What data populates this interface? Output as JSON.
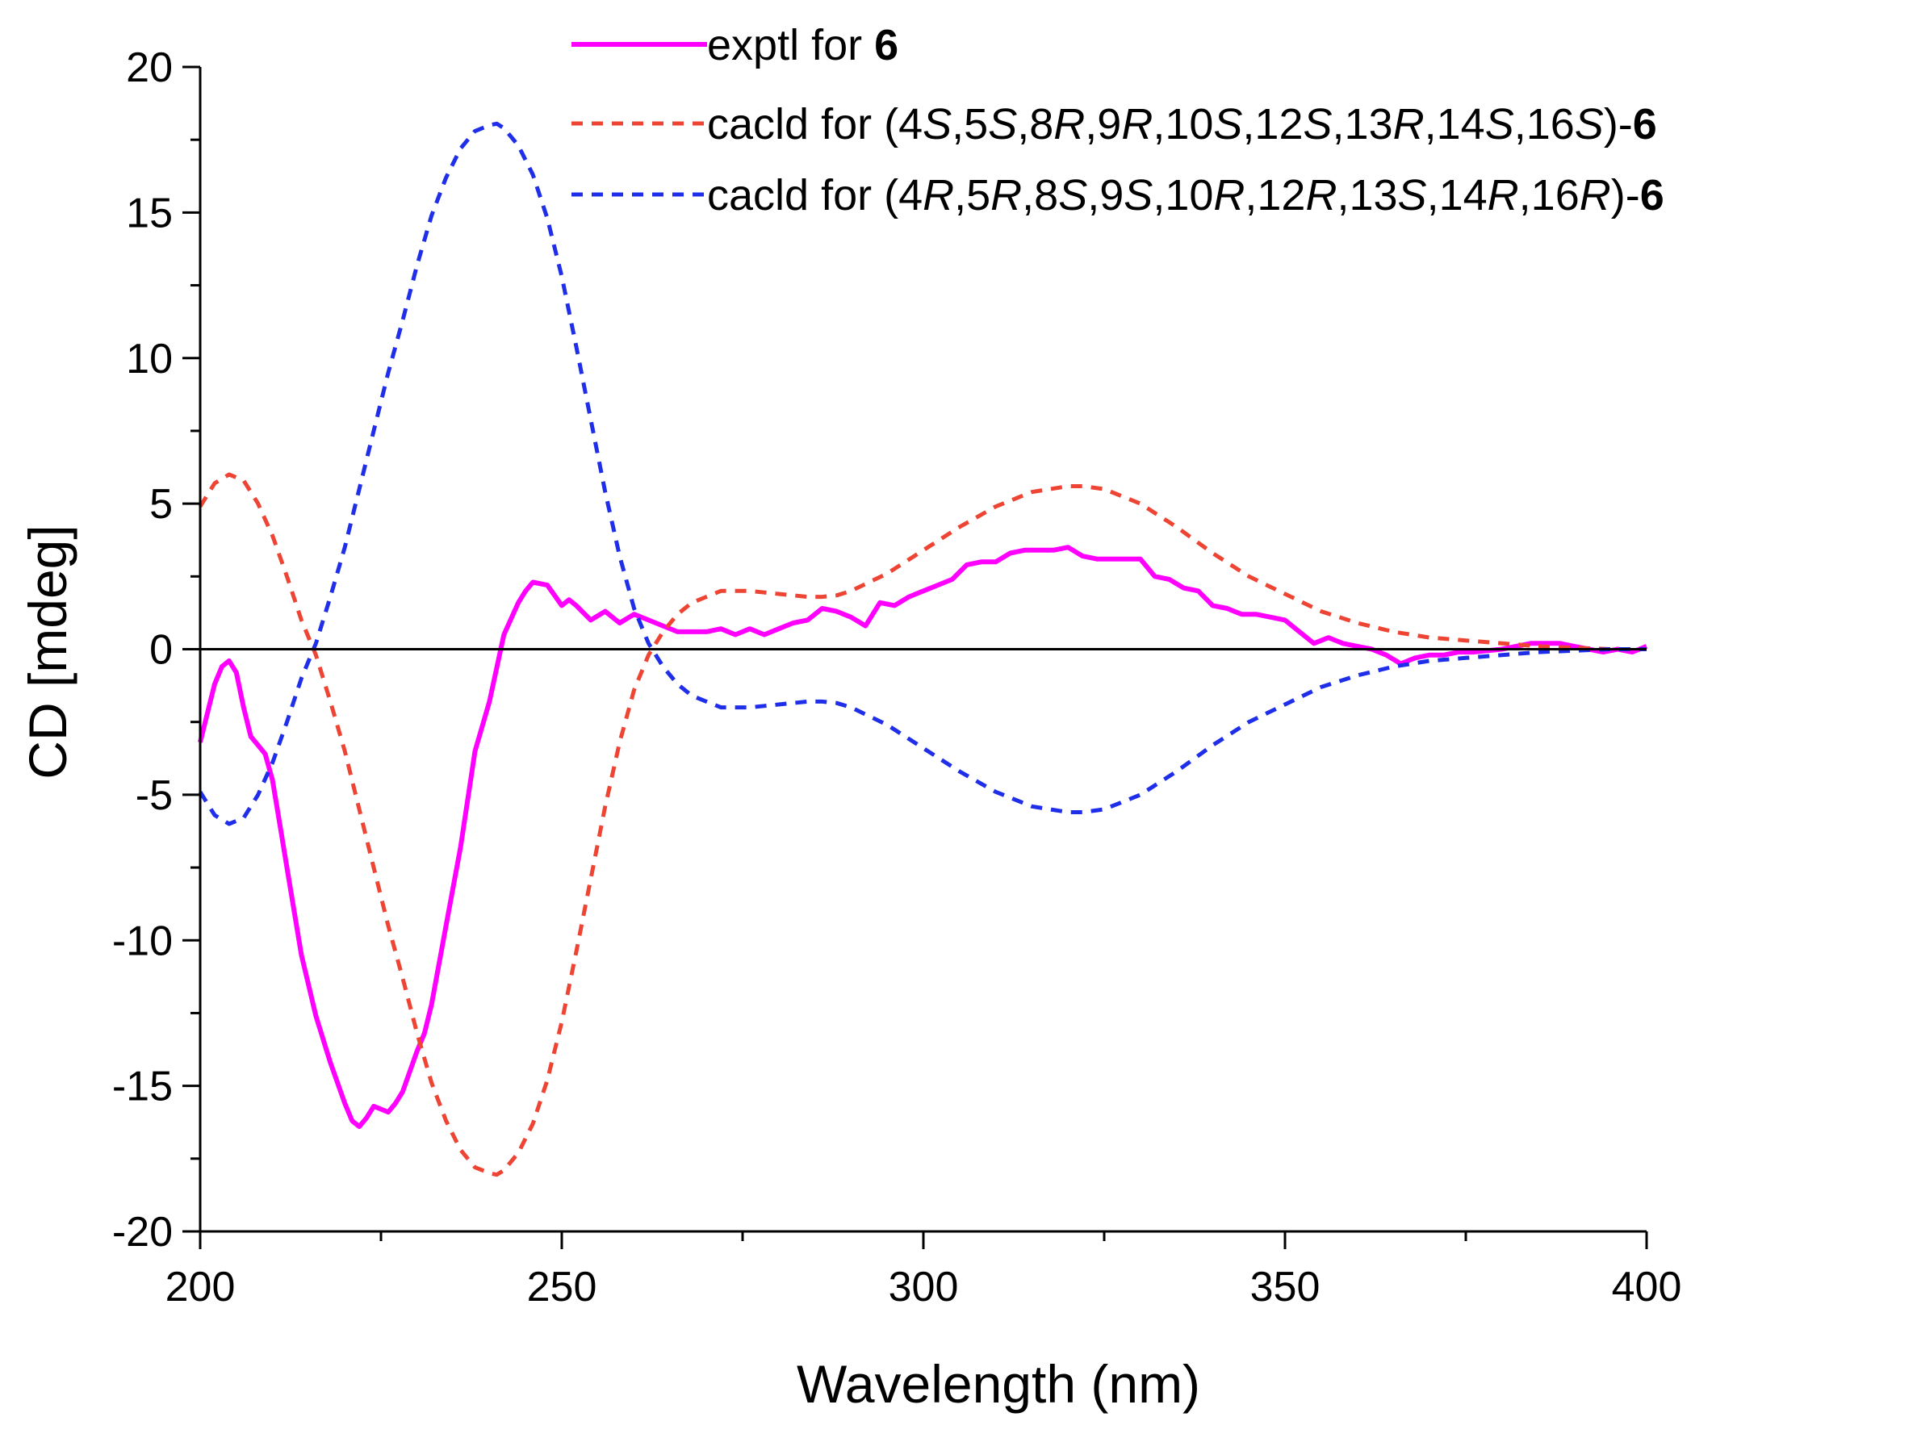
{
  "chart_data": {
    "type": "line",
    "title": "",
    "xlabel": "Wavelength (nm)",
    "ylabel": "CD [mdeg]",
    "xlim": [
      200,
      400
    ],
    "ylim": [
      -20,
      20
    ],
    "xticks": [
      200,
      250,
      300,
      350,
      400
    ],
    "xtick_labels": [
      "200",
      "250",
      "300",
      "350",
      "400"
    ],
    "yticks": [
      20,
      15,
      10,
      5,
      0,
      -5,
      -10,
      -15,
      -20
    ],
    "ytick_labels": [
      "20",
      "15",
      "10",
      "5",
      "0",
      "-5",
      "-10",
      "-15",
      "-20"
    ],
    "zero_line": true,
    "grid": false,
    "legend_position": "top-right",
    "series": [
      {
        "name": "exptl for 6",
        "legend_parts": [
          {
            "text": "exptl for ",
            "style": "normal"
          },
          {
            "text": "6",
            "style": "bold"
          }
        ],
        "color": "#ff00ff",
        "dash": "solid",
        "x": [
          200,
          202,
          203,
          204,
          205,
          206,
          207,
          208,
          209,
          210,
          211,
          212,
          214,
          216,
          218,
          220,
          221,
          222,
          223,
          224,
          225,
          226,
          227,
          228,
          229,
          230,
          231,
          232,
          234,
          236,
          238,
          240,
          242,
          244,
          245,
          246,
          248,
          250,
          251,
          252,
          254,
          256,
          258,
          260,
          262,
          264,
          266,
          268,
          270,
          272,
          274,
          276,
          278,
          280,
          282,
          284,
          286,
          288,
          290,
          292,
          294,
          296,
          298,
          300,
          302,
          304,
          306,
          308,
          310,
          312,
          314,
          316,
          318,
          320,
          322,
          324,
          326,
          328,
          330,
          332,
          334,
          336,
          338,
          340,
          342,
          344,
          346,
          348,
          350,
          352,
          354,
          356,
          358,
          360,
          362,
          364,
          366,
          368,
          370,
          372,
          374,
          376,
          380,
          384,
          388,
          390,
          392,
          394,
          396,
          398,
          400
        ],
        "values": [
          -3.2,
          -1.2,
          -0.6,
          -0.4,
          -0.8,
          -2.0,
          -3.0,
          -3.3,
          -3.6,
          -4.5,
          -6.0,
          -7.5,
          -10.5,
          -12.6,
          -14.2,
          -15.6,
          -16.2,
          -16.4,
          -16.1,
          -15.7,
          -15.8,
          -15.9,
          -15.6,
          -15.2,
          -14.5,
          -13.8,
          -13.2,
          -12.2,
          -9.5,
          -6.8,
          -3.5,
          -1.8,
          0.5,
          1.6,
          2.0,
          2.3,
          2.2,
          1.5,
          1.7,
          1.5,
          1.0,
          1.3,
          0.9,
          1.2,
          1.0,
          0.8,
          0.6,
          0.6,
          0.6,
          0.7,
          0.5,
          0.7,
          0.5,
          0.7,
          0.9,
          1.0,
          1.4,
          1.3,
          1.1,
          0.8,
          1.6,
          1.5,
          1.8,
          2.0,
          2.2,
          2.4,
          2.9,
          3.0,
          3.0,
          3.3,
          3.4,
          3.4,
          3.4,
          3.5,
          3.2,
          3.1,
          3.1,
          3.1,
          3.1,
          2.5,
          2.4,
          2.1,
          2.0,
          1.5,
          1.4,
          1.2,
          1.2,
          1.1,
          1.0,
          0.6,
          0.2,
          0.4,
          0.2,
          0.1,
          0.0,
          -0.2,
          -0.5,
          -0.3,
          -0.2,
          -0.2,
          -0.1,
          -0.1,
          0.0,
          0.2,
          0.2,
          0.1,
          0.0,
          -0.1,
          0.0,
          -0.1,
          0.1
        ]
      },
      {
        "name": "cacld for (4S,5S,8R,9R,10S,12S,13R,14S,16S)-6",
        "legend_parts": [
          {
            "text": "cacld for (4",
            "style": "normal"
          },
          {
            "text": "S",
            "style": "italic"
          },
          {
            "text": ",5",
            "style": "normal"
          },
          {
            "text": "S",
            "style": "italic"
          },
          {
            "text": ",8",
            "style": "normal"
          },
          {
            "text": "R",
            "style": "italic"
          },
          {
            "text": ",9",
            "style": "normal"
          },
          {
            "text": "R",
            "style": "italic"
          },
          {
            "text": ",10",
            "style": "normal"
          },
          {
            "text": "S",
            "style": "italic"
          },
          {
            "text": ",12",
            "style": "normal"
          },
          {
            "text": "S",
            "style": "italic"
          },
          {
            "text": ",13",
            "style": "normal"
          },
          {
            "text": "R",
            "style": "italic"
          },
          {
            "text": ",14",
            "style": "normal"
          },
          {
            "text": "S",
            "style": "italic"
          },
          {
            "text": ",16",
            "style": "normal"
          },
          {
            "text": "S",
            "style": "italic"
          },
          {
            "text": ")-",
            "style": "normal"
          },
          {
            "text": "6",
            "style": "bold"
          }
        ],
        "color": "#ee4433",
        "dash": "dashed",
        "x": [
          200,
          202,
          204,
          206,
          208,
          210,
          212,
          214,
          216,
          218,
          220,
          222,
          224,
          226,
          228,
          230,
          232,
          234,
          236,
          238,
          240,
          241,
          242,
          244,
          246,
          248,
          250,
          252,
          254,
          256,
          258,
          260,
          262,
          264,
          266,
          268,
          270,
          272,
          274,
          276,
          278,
          280,
          282,
          284,
          286,
          288,
          290,
          295,
          300,
          305,
          310,
          315,
          320,
          322,
          325,
          330,
          335,
          340,
          345,
          350,
          355,
          360,
          365,
          370,
          375,
          380,
          385,
          390,
          395,
          400
        ],
        "values": [
          4.9,
          5.7,
          6.0,
          5.8,
          5.0,
          3.9,
          2.5,
          1.0,
          -0.2,
          -1.8,
          -3.5,
          -5.5,
          -7.5,
          -9.5,
          -11.3,
          -13.2,
          -14.9,
          -16.2,
          -17.2,
          -17.8,
          -18.0,
          -18.05,
          -17.9,
          -17.3,
          -16.3,
          -14.8,
          -12.8,
          -10.4,
          -7.9,
          -5.4,
          -3.2,
          -1.4,
          -0.2,
          0.6,
          1.2,
          1.6,
          1.8,
          2.0,
          2.0,
          2.0,
          1.95,
          1.9,
          1.85,
          1.8,
          1.8,
          1.85,
          2.0,
          2.6,
          3.4,
          4.2,
          4.9,
          5.4,
          5.6,
          5.6,
          5.5,
          5.0,
          4.2,
          3.3,
          2.5,
          1.9,
          1.3,
          0.9,
          0.6,
          0.4,
          0.3,
          0.2,
          0.1,
          0.05,
          0.0,
          0.0
        ]
      },
      {
        "name": "cacld for (4R,5R,8S,9S,10R,12R,13S,14R,16R)-6",
        "legend_parts": [
          {
            "text": "cacld for (4",
            "style": "normal"
          },
          {
            "text": "R",
            "style": "italic"
          },
          {
            "text": ",5",
            "style": "normal"
          },
          {
            "text": "R",
            "style": "italic"
          },
          {
            "text": ",8",
            "style": "normal"
          },
          {
            "text": "S",
            "style": "italic"
          },
          {
            "text": ",9",
            "style": "normal"
          },
          {
            "text": "S",
            "style": "italic"
          },
          {
            "text": ",10",
            "style": "normal"
          },
          {
            "text": "R",
            "style": "italic"
          },
          {
            "text": ",12",
            "style": "normal"
          },
          {
            "text": "R",
            "style": "italic"
          },
          {
            "text": ",13",
            "style": "normal"
          },
          {
            "text": "S",
            "style": "italic"
          },
          {
            "text": ",14",
            "style": "normal"
          },
          {
            "text": "R",
            "style": "italic"
          },
          {
            "text": ",16",
            "style": "normal"
          },
          {
            "text": "R",
            "style": "italic"
          },
          {
            "text": ")-",
            "style": "normal"
          },
          {
            "text": "6",
            "style": "bold"
          }
        ],
        "color": "#1f2ee8",
        "dash": "dashed",
        "x": [
          200,
          202,
          204,
          206,
          208,
          210,
          212,
          214,
          216,
          218,
          220,
          222,
          224,
          226,
          228,
          230,
          232,
          234,
          236,
          238,
          240,
          241,
          242,
          244,
          246,
          248,
          250,
          252,
          254,
          256,
          258,
          260,
          262,
          264,
          266,
          268,
          270,
          272,
          274,
          276,
          278,
          280,
          282,
          284,
          286,
          288,
          290,
          295,
          300,
          305,
          310,
          315,
          320,
          322,
          325,
          330,
          335,
          340,
          345,
          350,
          355,
          360,
          365,
          370,
          375,
          380,
          385,
          390,
          395,
          400
        ],
        "values": [
          -4.9,
          -5.7,
          -6.0,
          -5.8,
          -5.0,
          -3.9,
          -2.5,
          -1.0,
          0.2,
          1.8,
          3.5,
          5.5,
          7.5,
          9.5,
          11.3,
          13.2,
          14.9,
          16.2,
          17.2,
          17.8,
          18.0,
          18.05,
          17.9,
          17.3,
          16.3,
          14.8,
          12.8,
          10.4,
          7.9,
          5.4,
          3.2,
          1.4,
          0.2,
          -0.6,
          -1.2,
          -1.6,
          -1.8,
          -2.0,
          -2.0,
          -2.0,
          -1.95,
          -1.9,
          -1.85,
          -1.8,
          -1.8,
          -1.85,
          -2.0,
          -2.6,
          -3.4,
          -4.2,
          -4.9,
          -5.4,
          -5.6,
          -5.6,
          -5.5,
          -5.0,
          -4.2,
          -3.3,
          -2.5,
          -1.9,
          -1.3,
          -0.9,
          -0.6,
          -0.4,
          -0.3,
          -0.2,
          -0.1,
          -0.05,
          0.0,
          0.0
        ]
      }
    ]
  }
}
